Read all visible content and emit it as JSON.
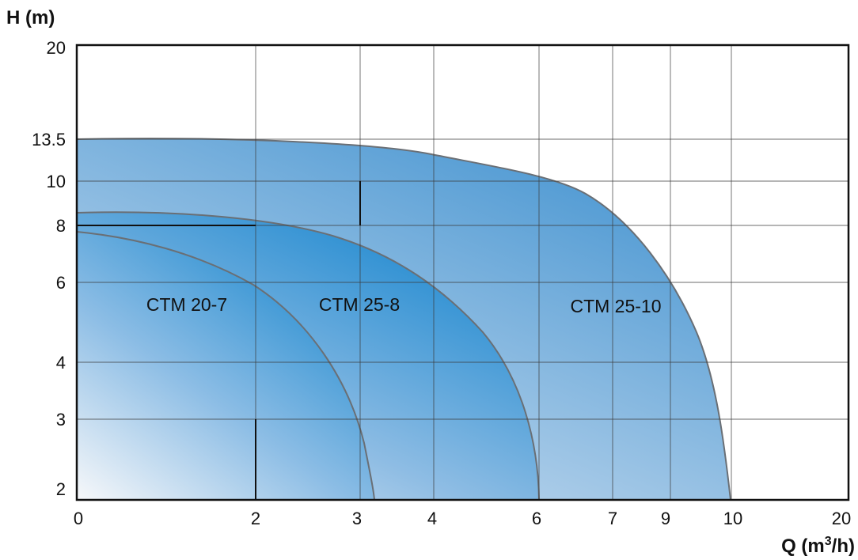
{
  "chart_data": {
    "type": "area",
    "ylabel": "H (m)",
    "xlabel_main": "Q (m",
    "xlabel_sup": "3",
    "xlabel_end": "/h)",
    "x_ticks": [
      "0",
      "2",
      "3",
      "4",
      "6",
      "7",
      "9",
      "10",
      "20"
    ],
    "y_ticks": [
      "20",
      "13.5",
      "10",
      "8",
      "6",
      "4",
      "3",
      "2"
    ],
    "xlim": [
      0,
      20
    ],
    "ylim": [
      2,
      20
    ],
    "x_scale": "log-like (non-linear)",
    "y_scale": "log-like (non-linear)",
    "grid": true,
    "series": [
      {
        "name": "CTM 20-7",
        "x": [
          0,
          0.5,
          1,
          1.5,
          2,
          2.5,
          3,
          3.2
        ],
        "y": [
          7.7,
          7.4,
          7.0,
          6.5,
          5.8,
          4.6,
          2.8,
          2.0
        ],
        "color": "#1e88cf"
      },
      {
        "name": "CTM 25-8",
        "x": [
          0,
          1,
          2,
          3,
          4,
          5,
          5.5,
          6
        ],
        "y": [
          8.6,
          8.5,
          8.2,
          7.5,
          6.3,
          4.5,
          3.3,
          2.0
        ],
        "color": "#1e88cf"
      },
      {
        "name": "CTM 25-10",
        "x": [
          0,
          2,
          3,
          4,
          6,
          7,
          8,
          9,
          10
        ],
        "y": [
          13.3,
          13.2,
          12.9,
          12.0,
          10.3,
          8.9,
          7.3,
          5.4,
          2.0
        ],
        "color": "#4f97d0"
      }
    ],
    "annotations": {
      "horizontal_line": {
        "y": 8,
        "x_from": 0,
        "x_to": 2
      },
      "vertical_lines": [
        {
          "x": 3,
          "y_from": 8,
          "y_to": 10
        },
        {
          "x": 2,
          "y_from": 2,
          "y_to": 3
        }
      ]
    }
  }
}
